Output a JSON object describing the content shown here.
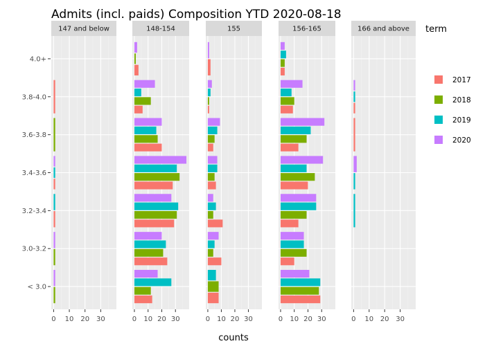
{
  "chart_data": {
    "type": "bar",
    "orientation": "horizontal",
    "title": "Admits (incl. paids) Composition YTD 2020-08-18",
    "xlabel": "counts",
    "ylabel": "",
    "xlim": [
      -1.5,
      40
    ],
    "x_ticks": [
      "0",
      "10",
      "20",
      "30"
    ],
    "x_tick_values": [
      0,
      10,
      20,
      30
    ],
    "categories": [
      "4.0+",
      "3.8-4.0",
      "3.6-3.8",
      "3.4-3.6",
      "3.2-3.4",
      "3.0-3.2",
      "< 3.0"
    ],
    "legend": {
      "title": "term",
      "placement": "right",
      "entries": [
        {
          "name": "2017",
          "color": "#F8766D"
        },
        {
          "name": "2018",
          "color": "#7CAE00"
        },
        {
          "name": "2019",
          "color": "#00BFC4"
        },
        {
          "name": "2020",
          "color": "#C77CFF"
        }
      ]
    },
    "grid": true,
    "panels": [
      {
        "label": "147 and below",
        "series": [
          {
            "name": "2017",
            "values": [
              null,
              1,
              null,
              1,
              1,
              null,
              null
            ]
          },
          {
            "name": "2018",
            "values": [
              null,
              null,
              1,
              null,
              null,
              1,
              1
            ]
          },
          {
            "name": "2019",
            "values": [
              null,
              null,
              null,
              1,
              1,
              null,
              null
            ]
          },
          {
            "name": "2020",
            "values": [
              null,
              null,
              null,
              1,
              null,
              1,
              1
            ]
          }
        ]
      },
      {
        "label": "148-154",
        "series": [
          {
            "name": "2017",
            "values": [
              3,
              6,
              20,
              28,
              29,
              24,
              13
            ]
          },
          {
            "name": "2018",
            "values": [
              1,
              12,
              17,
              33,
              31,
              21,
              12
            ]
          },
          {
            "name": "2019",
            "values": [
              null,
              5,
              16,
              31,
              32,
              23,
              27
            ]
          },
          {
            "name": "2020",
            "values": [
              2,
              15,
              20,
              38,
              27,
              20,
              17
            ]
          }
        ]
      },
      {
        "label": "155",
        "series": [
          {
            "name": "2017",
            "values": [
              2,
              1,
              4,
              6,
              11,
              10,
              8
            ]
          },
          {
            "name": "2018",
            "values": [
              null,
              1,
              5,
              5,
              4,
              4,
              8
            ]
          },
          {
            "name": "2019",
            "values": [
              null,
              2,
              7,
              7,
              6,
              5,
              6
            ]
          },
          {
            "name": "2020",
            "values": [
              1,
              3,
              9,
              7,
              4,
              8,
              null
            ]
          }
        ]
      },
      {
        "label": "156-165",
        "series": [
          {
            "name": "2017",
            "values": [
              3,
              9,
              13,
              20,
              13,
              10,
              29
            ]
          },
          {
            "name": "2018",
            "values": [
              3,
              10,
              19,
              25,
              19,
              19,
              28
            ]
          },
          {
            "name": "2019",
            "values": [
              4,
              8,
              22,
              19,
              26,
              17,
              29
            ]
          },
          {
            "name": "2020",
            "values": [
              3,
              16,
              32,
              31,
              26,
              17,
              21
            ]
          }
        ]
      },
      {
        "label": "166 and above",
        "series": [
          {
            "name": "2017",
            "values": [
              null,
              1,
              1,
              null,
              null,
              null,
              null
            ]
          },
          {
            "name": "2018",
            "values": [
              null,
              null,
              null,
              null,
              null,
              null,
              null
            ]
          },
          {
            "name": "2019",
            "values": [
              null,
              1,
              null,
              1,
              1,
              null,
              null
            ]
          },
          {
            "name": "2020",
            "values": [
              null,
              1,
              null,
              2,
              null,
              null,
              null
            ]
          }
        ]
      }
    ]
  }
}
